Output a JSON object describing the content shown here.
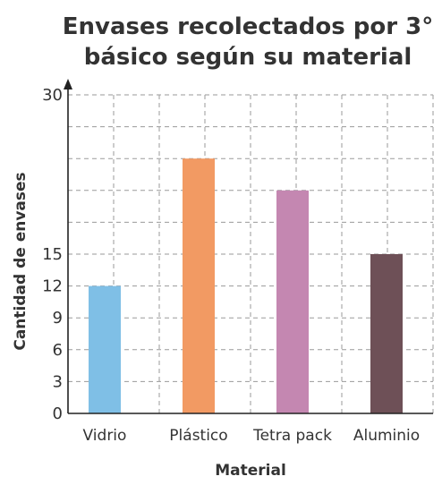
{
  "chart_data": {
    "type": "bar",
    "title_line1": "Envases recolectados por 3°",
    "title_line2": "básico según su material",
    "xlabel": "Material",
    "ylabel": "Cantidad de envases",
    "categories": [
      "Vidrio",
      "Plástico",
      "Tetra pack",
      "Aluminio"
    ],
    "values": [
      12,
      24,
      21,
      15
    ],
    "colors": [
      "#7fbfe6",
      "#f29a63",
      "#c487b1",
      "#6e5057"
    ],
    "ylim": [
      0,
      30
    ],
    "y_grid_values": [
      0,
      3,
      6,
      9,
      12,
      15,
      18,
      21,
      24,
      27,
      30
    ],
    "y_tick_labels": [
      {
        "value": 0,
        "label": "0"
      },
      {
        "value": 3,
        "label": "3"
      },
      {
        "value": 6,
        "label": "6"
      },
      {
        "value": 9,
        "label": "9"
      },
      {
        "value": 12,
        "label": "12"
      },
      {
        "value": 15,
        "label": "15"
      },
      {
        "value": 30,
        "label": "30"
      }
    ],
    "grid": true
  }
}
